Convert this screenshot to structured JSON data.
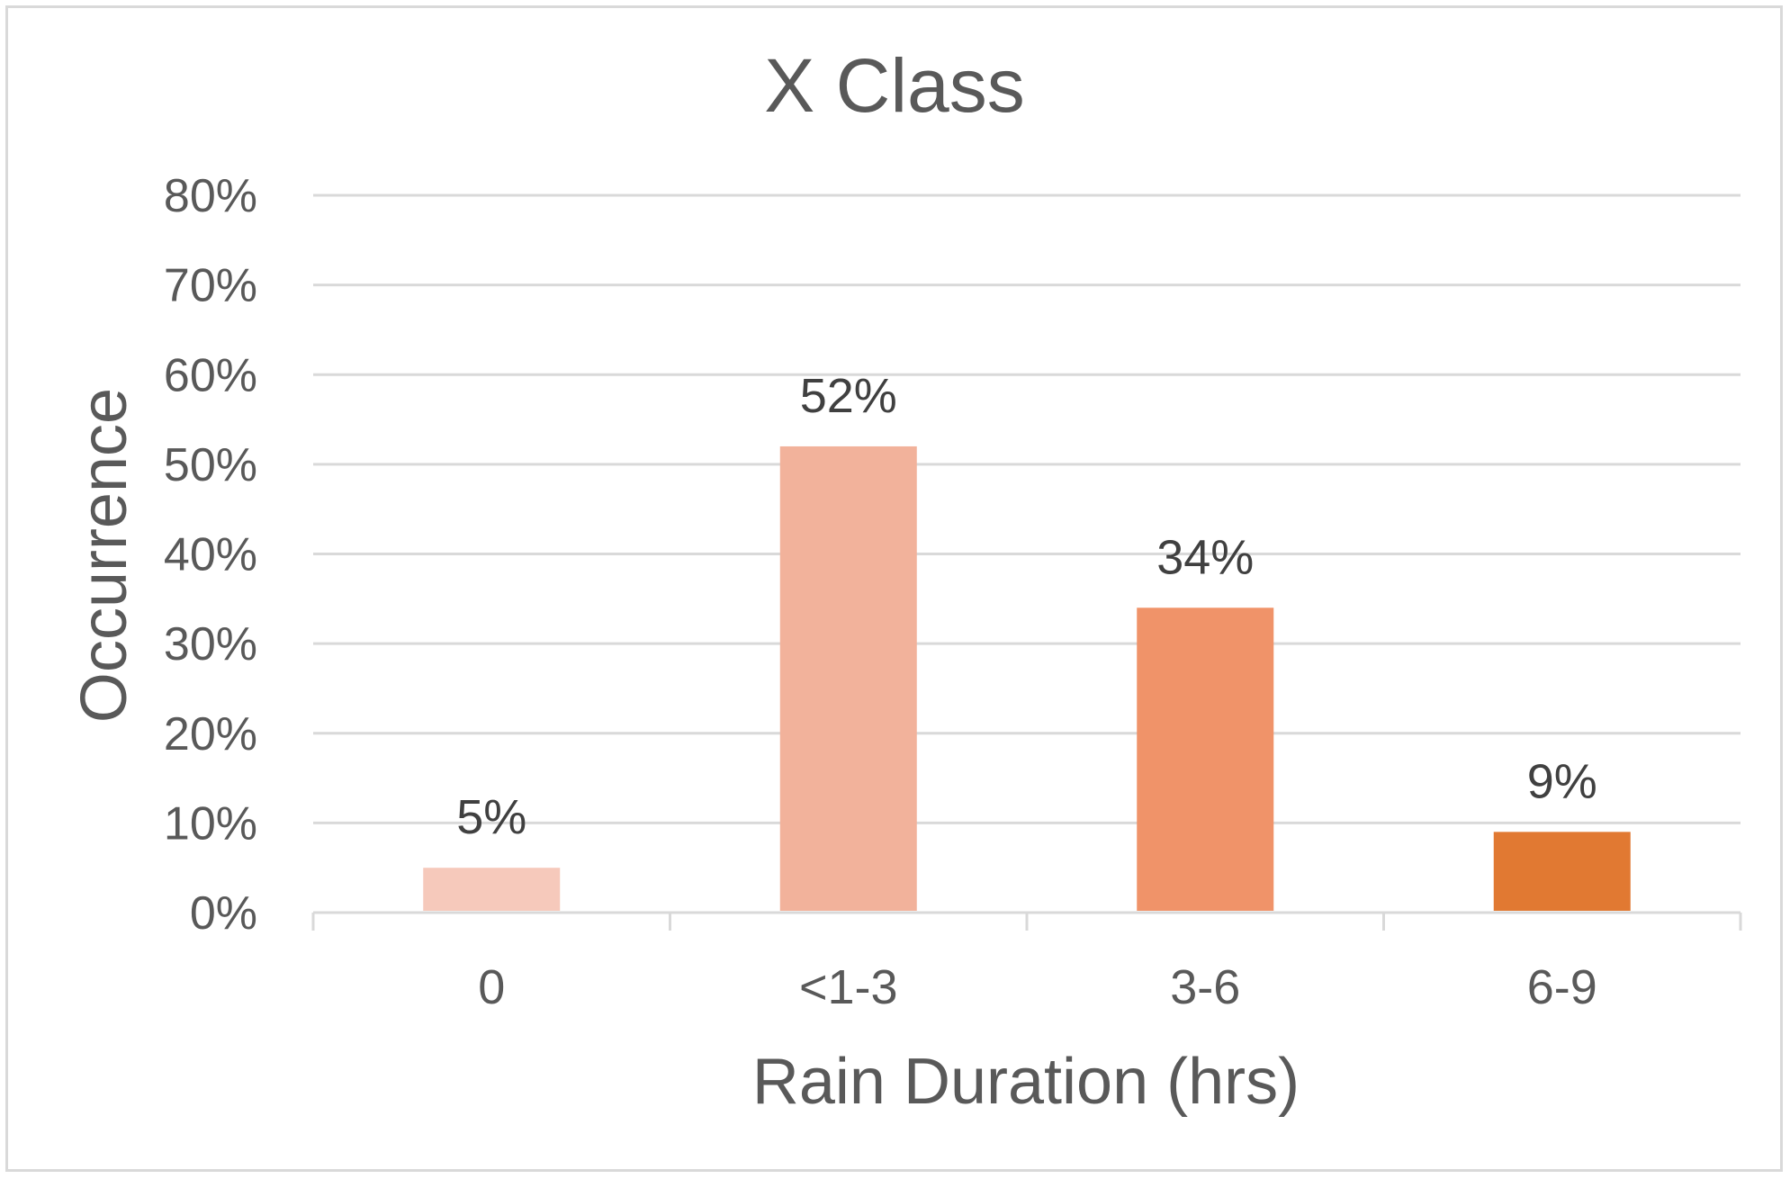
{
  "chart_data": {
    "type": "bar",
    "title": "X Class",
    "xlabel": "Rain Duration (hrs)",
    "ylabel": "Occurrence",
    "categories": [
      "0",
      "<1-3",
      "3-6",
      "6-9"
    ],
    "values": [
      5,
      52,
      34,
      9
    ],
    "value_labels": [
      "5%",
      "52%",
      "34%",
      "9%"
    ],
    "ylim": [
      0,
      80
    ],
    "yticks": [
      0,
      10,
      20,
      30,
      40,
      50,
      60,
      70,
      80
    ],
    "ytick_labels": [
      "0%",
      "10%",
      "20%",
      "30%",
      "40%",
      "50%",
      "60%",
      "70%",
      "80%"
    ],
    "grid": true,
    "legend": "none",
    "colors": [
      "#f6c9bb",
      "#f2b29b",
      "#f09369",
      "#e17932"
    ]
  }
}
